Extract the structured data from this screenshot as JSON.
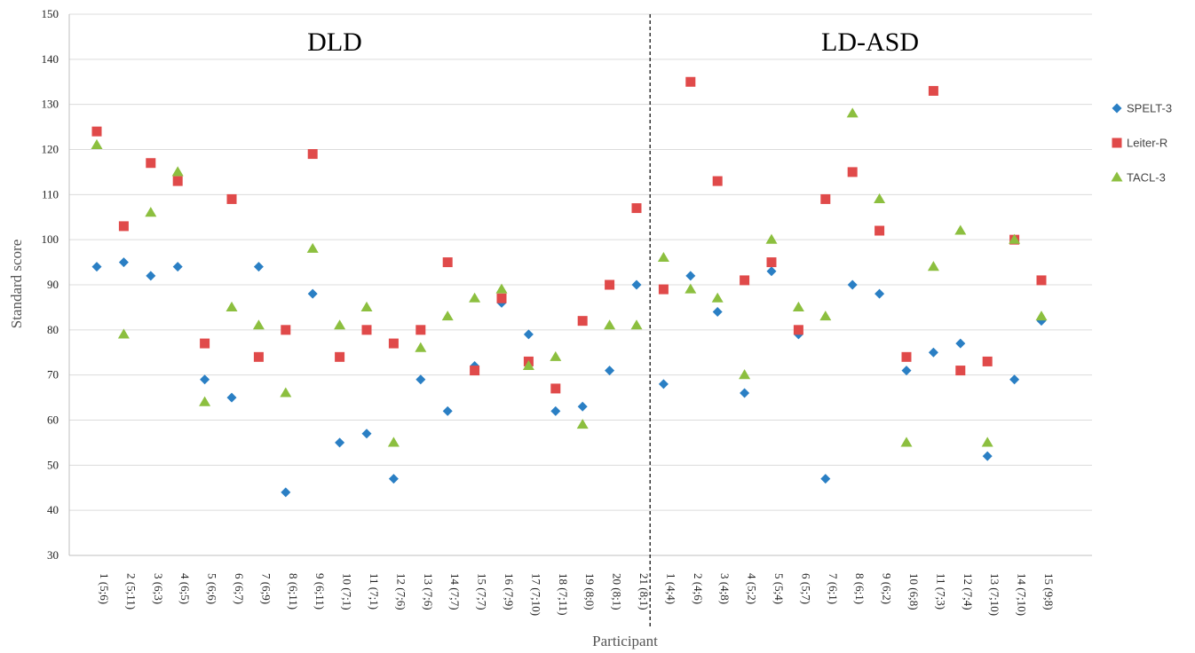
{
  "chart_data": {
    "type": "scatter",
    "xlabel": "Participant",
    "ylabel": "Standard score",
    "ylim": [
      30,
      150
    ],
    "yticks": [
      30,
      40,
      50,
      60,
      70,
      80,
      90,
      100,
      110,
      120,
      130,
      140,
      150
    ],
    "grid": "horizontal",
    "legend_position": "right",
    "groups": [
      {
        "label": "DLD",
        "start_index": 0,
        "count": 21
      },
      {
        "label": "LD-ASD",
        "start_index": 21,
        "count": 15
      }
    ],
    "categories": [
      "1 (5;6)",
      "2 (5;11)",
      "3 (6;3)",
      "4 (6;5)",
      "5 (6;6)",
      "6 (6;7)",
      "7 (6;9)",
      "8 (6;11)",
      "9 (6;11)",
      "10 (7;1)",
      "11 (7;1)",
      "12 (7;6)",
      "13 (7;6)",
      "14 (7;7)",
      "15 (7;7)",
      "16 (7;9)",
      "17 (7;10)",
      "18 (7;11)",
      "19 (8;0)",
      "20 (8;1)",
      "21 (8;1)",
      "1 (4;4)",
      "2 (4;6)",
      "3 (4;8)",
      "4 (5;2)",
      "5 (5;4)",
      "6 (5;7)",
      "7 (6;1)",
      "8 (6;1)",
      "9 (6;2)",
      "10 (6;8)",
      "11 (7;3)",
      "12 (7;4)",
      "13 (7;10)",
      "14 (7;10)",
      "15 (9;8)"
    ],
    "series": [
      {
        "name": "SPELT-3",
        "color": "#2a7fc4",
        "marker": "diamond",
        "values": [
          94,
          95,
          92,
          94,
          69,
          65,
          94,
          44,
          88,
          55,
          57,
          47,
          69,
          62,
          72,
          86,
          79,
          62,
          63,
          71,
          90,
          68,
          92,
          84,
          66,
          93,
          79,
          47,
          90,
          88,
          71,
          75,
          77,
          52,
          69,
          82
        ]
      },
      {
        "name": "Leiter-R",
        "color": "#e04a4a",
        "marker": "square",
        "values": [
          124,
          103,
          117,
          113,
          77,
          109,
          74,
          80,
          119,
          74,
          80,
          77,
          80,
          95,
          71,
          87,
          73,
          67,
          82,
          90,
          107,
          89,
          135,
          113,
          91,
          95,
          80,
          109,
          115,
          102,
          74,
          133,
          71,
          73,
          100,
          91
        ]
      },
      {
        "name": "TACL-3",
        "color": "#8cbf3f",
        "marker": "triangle",
        "values": [
          121,
          79,
          106,
          115,
          64,
          85,
          81,
          66,
          98,
          81,
          85,
          55,
          76,
          83,
          87,
          89,
          72,
          74,
          59,
          81,
          81,
          96,
          89,
          87,
          70,
          100,
          85,
          83,
          128,
          109,
          55,
          94,
          102,
          55,
          100,
          83
        ]
      }
    ]
  }
}
